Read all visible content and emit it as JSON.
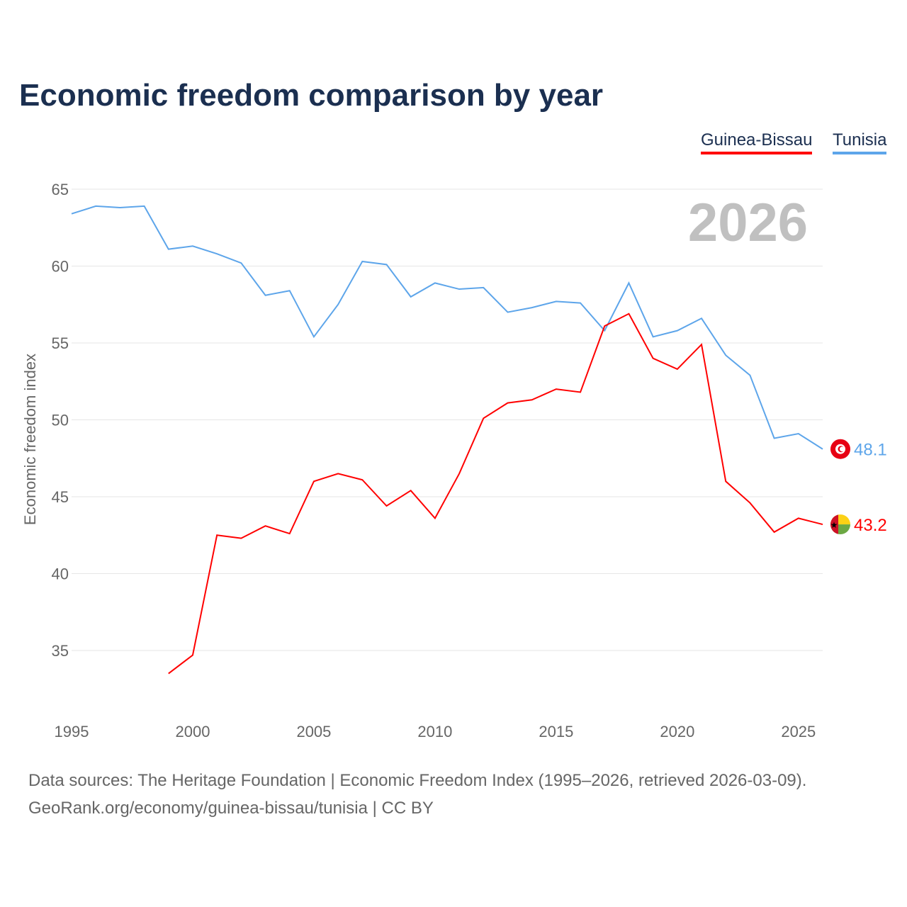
{
  "chart_data": {
    "type": "line",
    "title": "Economic freedom comparison by year",
    "xlabel": "",
    "ylabel": "Economic freedom index",
    "xlim": [
      1995,
      2026
    ],
    "ylim": [
      31,
      66
    ],
    "yticks": [
      35,
      40,
      45,
      50,
      55,
      60,
      65
    ],
    "xticks": [
      1995,
      2000,
      2005,
      2010,
      2015,
      2020,
      2025
    ],
    "grid": true,
    "legend_placement": "top-right",
    "watermark_year": "2026",
    "series": [
      {
        "name": "Guinea-Bissau",
        "color": "#ff0000",
        "end_label": "43.2",
        "x": [
          1999,
          2000,
          2001,
          2002,
          2003,
          2004,
          2005,
          2006,
          2007,
          2008,
          2009,
          2010,
          2011,
          2012,
          2013,
          2014,
          2015,
          2016,
          2017,
          2018,
          2019,
          2020,
          2021,
          2022,
          2023,
          2024,
          2025,
          2026
        ],
        "values": [
          33.5,
          34.7,
          42.5,
          42.3,
          43.1,
          42.6,
          46.0,
          46.5,
          46.1,
          44.4,
          45.4,
          43.6,
          46.5,
          50.1,
          51.1,
          51.3,
          52.0,
          51.8,
          56.1,
          56.9,
          54.0,
          53.3,
          54.9,
          46.0,
          44.6,
          42.7,
          43.6,
          43.2
        ]
      },
      {
        "name": "Tunisia",
        "color": "#5da5ea",
        "end_label": "48.1",
        "x": [
          1995,
          1996,
          1997,
          1998,
          1999,
          2000,
          2001,
          2002,
          2003,
          2004,
          2005,
          2006,
          2007,
          2008,
          2009,
          2010,
          2011,
          2012,
          2013,
          2014,
          2015,
          2016,
          2017,
          2018,
          2019,
          2020,
          2021,
          2022,
          2023,
          2024,
          2025,
          2026
        ],
        "values": [
          63.4,
          63.9,
          63.8,
          63.9,
          61.1,
          61.3,
          60.8,
          60.2,
          58.1,
          58.4,
          55.4,
          57.5,
          60.3,
          60.1,
          58.0,
          58.9,
          58.5,
          58.6,
          57.0,
          57.3,
          57.7,
          57.6,
          55.8,
          58.9,
          55.4,
          55.8,
          56.6,
          54.2,
          52.9,
          48.8,
          49.1,
          48.1
        ]
      }
    ]
  },
  "footer": {
    "line1": "Data sources: The Heritage Foundation | Economic Freedom Index (1995–2026, retrieved 2026-03-09).",
    "line2": "GeoRank.org/economy/guinea-bissau/tunisia | CC BY"
  }
}
